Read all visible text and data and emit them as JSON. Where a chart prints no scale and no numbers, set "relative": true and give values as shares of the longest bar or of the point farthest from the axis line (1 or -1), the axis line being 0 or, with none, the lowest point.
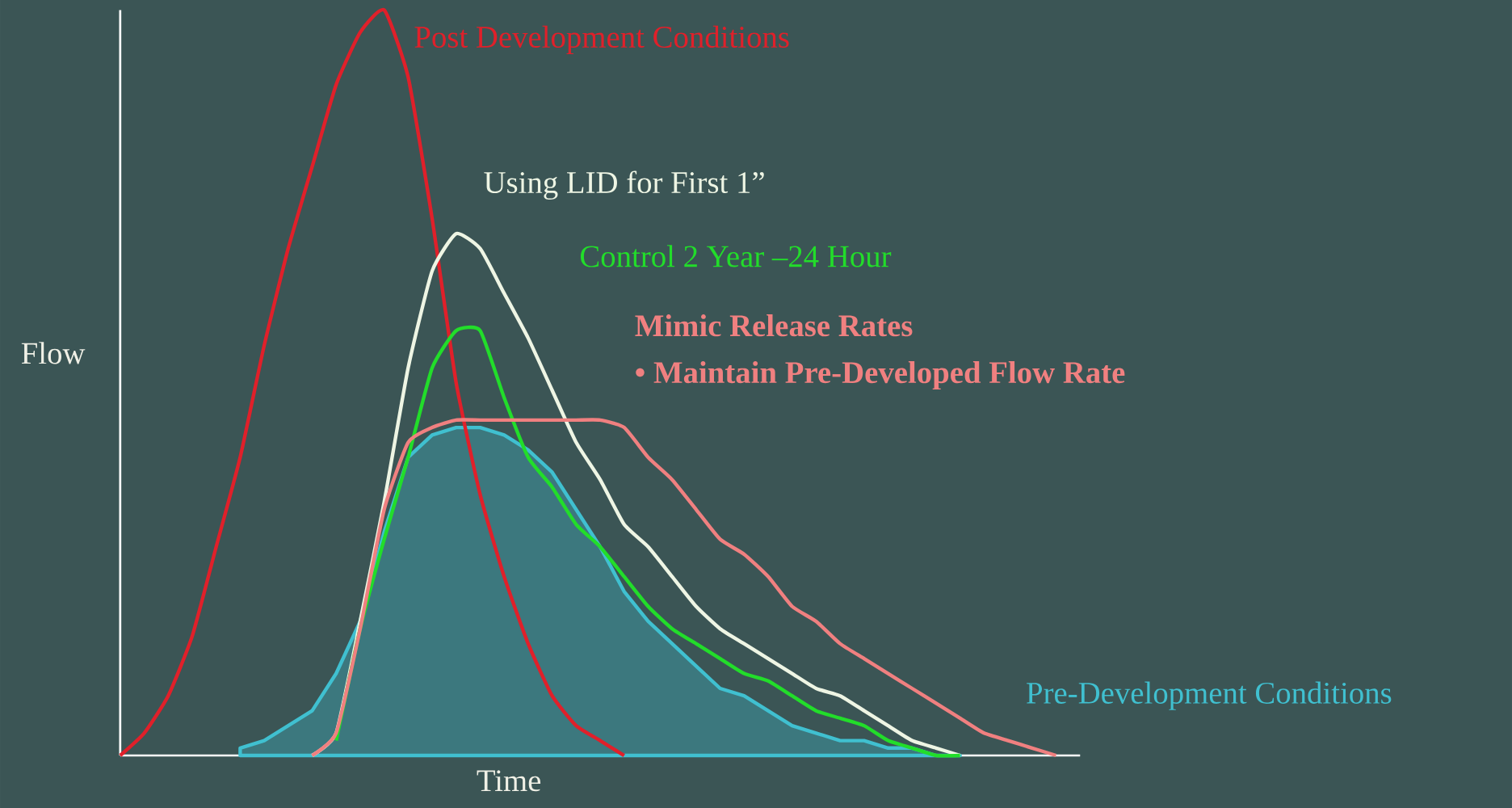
{
  "chart_data": {
    "type": "line",
    "relative": true,
    "xlabel": "Time",
    "ylabel": "Flow",
    "categories": [
      null,
      null,
      null,
      null,
      null,
      null,
      null,
      null,
      null,
      null,
      null,
      null,
      null,
      null,
      null,
      null,
      null,
      null,
      null,
      null,
      null,
      null,
      null,
      null,
      null,
      null,
      null,
      null,
      null,
      null,
      null,
      null,
      null,
      null,
      null,
      null,
      null,
      null,
      null,
      null,
      null
    ],
    "series": [
      {
        "name": "Pre-Development Conditions",
        "type": "area",
        "color": "#40c0d0",
        "values": [
          null,
          null,
          null,
          null,
          null,
          0.01,
          0.02,
          0.04,
          0.06,
          0.11,
          0.18,
          0.3,
          0.4,
          0.43,
          0.44,
          0.44,
          0.43,
          0.41,
          0.38,
          0.33,
          0.28,
          0.22,
          0.18,
          0.15,
          0.12,
          0.09,
          0.08,
          0.06,
          0.04,
          0.03,
          0.02,
          0.02,
          0.01,
          0.01,
          0.0,
          0.0,
          null,
          null,
          null,
          null,
          null
        ]
      },
      {
        "name": "Post Development Conditions",
        "color": "#e0202a",
        "values": [
          0.0,
          0.03,
          0.08,
          0.16,
          0.28,
          0.4,
          0.55,
          0.68,
          0.79,
          0.9,
          0.97,
          1.0,
          0.91,
          0.72,
          0.5,
          0.35,
          0.24,
          0.15,
          0.08,
          0.04,
          0.02,
          0.0,
          null,
          null,
          null,
          null,
          null,
          null,
          null,
          null,
          null,
          null,
          null,
          null,
          null,
          null,
          null,
          null,
          null,
          null,
          null
        ]
      },
      {
        "name": "Using LID for First 1”",
        "color": "#eef5e4",
        "values": [
          null,
          null,
          null,
          null,
          null,
          null,
          null,
          null,
          0.0,
          0.03,
          0.18,
          0.34,
          0.52,
          0.65,
          0.7,
          0.68,
          0.62,
          0.56,
          0.49,
          0.42,
          0.37,
          0.31,
          0.28,
          0.24,
          0.2,
          0.17,
          0.15,
          0.13,
          0.11,
          0.09,
          0.08,
          0.06,
          0.04,
          0.02,
          0.01,
          0.0,
          null,
          null,
          null,
          null,
          null
        ]
      },
      {
        "name": "Control 2 Year –24 Hour",
        "color": "#22dd2a",
        "values": [
          null,
          null,
          null,
          null,
          null,
          null,
          null,
          null,
          null,
          0.02,
          0.17,
          0.29,
          0.4,
          0.52,
          0.57,
          0.57,
          0.48,
          0.4,
          0.36,
          0.31,
          0.28,
          0.24,
          0.2,
          0.17,
          0.15,
          0.13,
          0.11,
          0.1,
          0.08,
          0.06,
          0.05,
          0.04,
          0.02,
          0.01,
          0.0,
          0.0,
          null,
          null,
          null,
          null,
          null
        ]
      },
      {
        "name": "Mimic Release Rates",
        "color": "#f08080",
        "values": [
          null,
          null,
          null,
          null,
          null,
          null,
          null,
          null,
          0.0,
          0.03,
          0.17,
          0.33,
          0.42,
          0.44,
          0.45,
          0.45,
          0.45,
          0.45,
          0.45,
          0.45,
          0.45,
          0.44,
          0.4,
          0.37,
          0.33,
          0.29,
          0.27,
          0.24,
          0.2,
          0.18,
          0.15,
          0.13,
          0.11,
          0.09,
          0.07,
          0.05,
          0.03,
          0.02,
          0.01,
          0.0,
          null
        ]
      }
    ],
    "annotations": [
      "• Maintain Pre-Developed Flow Rate"
    ]
  }
}
